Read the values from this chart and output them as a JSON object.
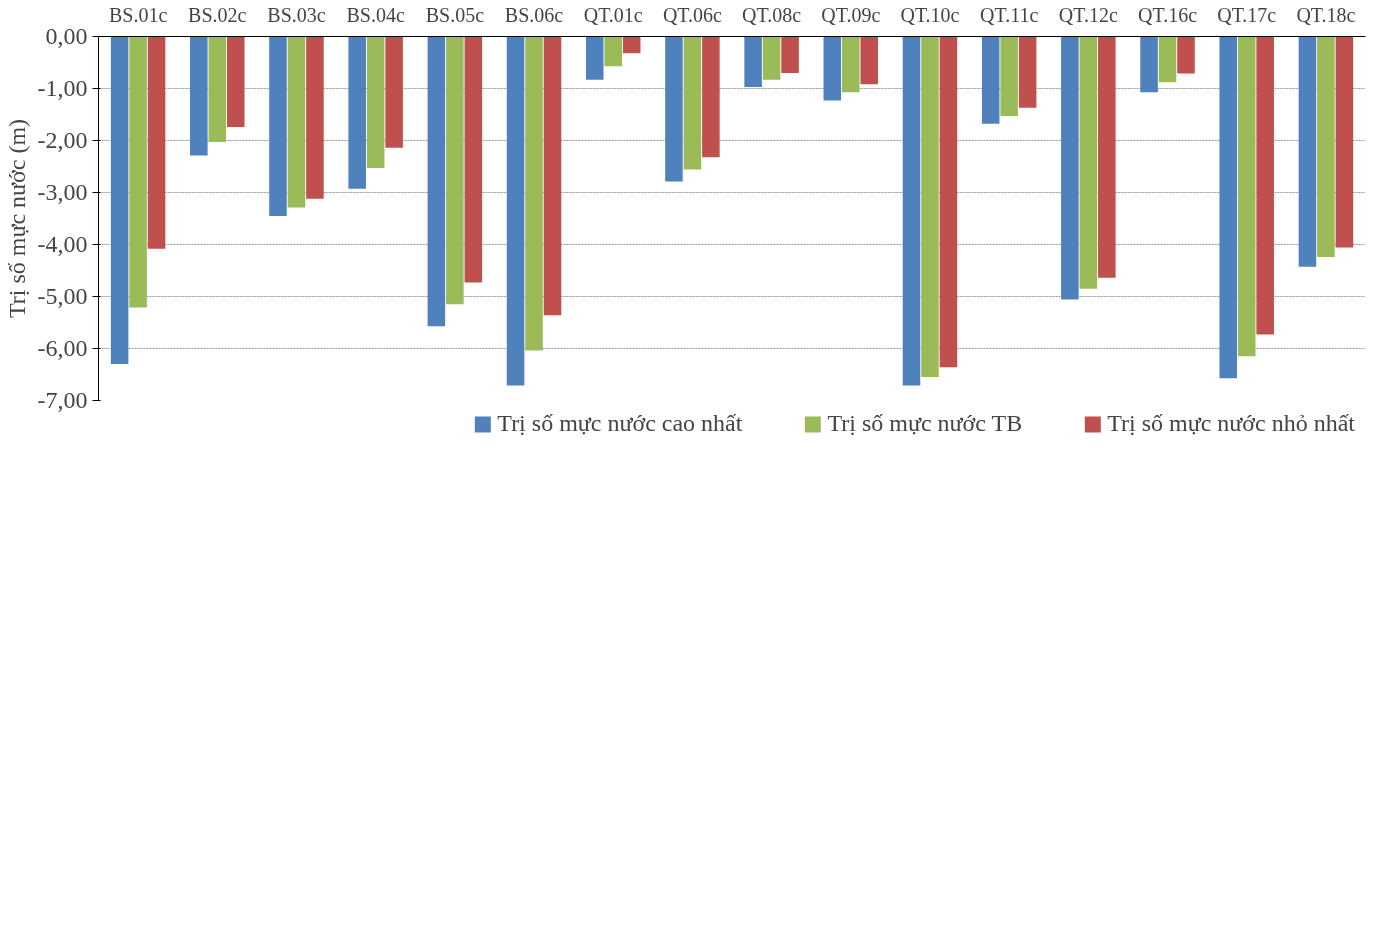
{
  "chart_data": {
    "type": "bar",
    "ylabel": "Trị số mực nước (m)",
    "categories": [
      "BS.01c",
      "BS.02c",
      "BS.03c",
      "BS.04c",
      "BS.05c",
      "BS.06c",
      "QT.01c",
      "QT.06c",
      "QT.08c",
      "QT.09c",
      "QT.10c",
      "QT.11c",
      "QT.12c",
      "QT.16c",
      "QT.17c",
      "QT.18c"
    ],
    "series": [
      {
        "name": "Trị số mực nước cao nhất",
        "color": "#4f81bd",
        "values": [
          -6.3,
          -2.29,
          -3.45,
          -2.93,
          -5.57,
          -6.71,
          -0.83,
          -2.79,
          -0.97,
          -1.23,
          -6.71,
          -1.68,
          -5.06,
          -1.07,
          -6.57,
          -4.43
        ]
      },
      {
        "name": "Trị số mực nước TB",
        "color": "#9bbb59",
        "values": [
          -5.21,
          -2.03,
          -3.29,
          -2.53,
          -5.15,
          -6.04,
          -0.57,
          -2.56,
          -0.83,
          -1.07,
          -6.55,
          -1.53,
          -4.85,
          -0.88,
          -6.15,
          -4.24
        ]
      },
      {
        "name": "Trị số mực nước nhỏ nhất",
        "color": "#c0504d",
        "values": [
          -4.08,
          -1.74,
          -3.12,
          -2.14,
          -4.73,
          -5.36,
          -0.32,
          -2.32,
          -0.7,
          -0.92,
          -6.36,
          -1.37,
          -4.64,
          -0.71,
          -5.73,
          -4.06
        ]
      }
    ],
    "ylim": [
      -7,
      0
    ],
    "yticks": [
      {
        "value": 0,
        "label": "0,00"
      },
      {
        "value": -1,
        "label": "-1,00"
      },
      {
        "value": -2,
        "label": "-2,00"
      },
      {
        "value": -3,
        "label": "-3,00"
      },
      {
        "value": -4,
        "label": "-4,00"
      },
      {
        "value": -5,
        "label": "-5,00"
      },
      {
        "value": -6,
        "label": "-6,00"
      },
      {
        "value": -7,
        "label": "-7,00"
      }
    ],
    "grid": "y",
    "legend": "bottom"
  }
}
